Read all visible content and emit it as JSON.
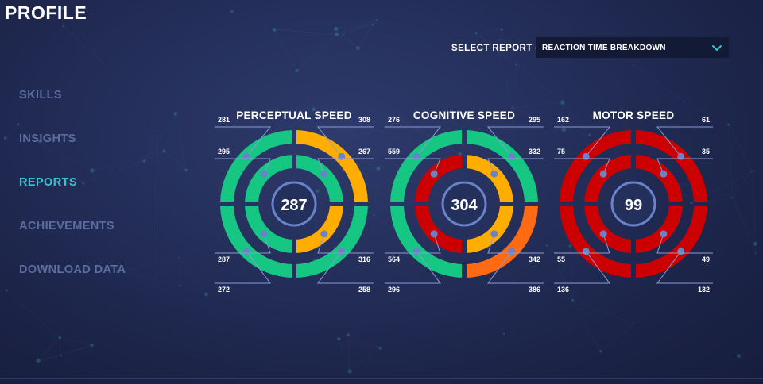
{
  "header": {
    "title": "PROFILE"
  },
  "nav": {
    "items": [
      {
        "label": "SKILLS",
        "active": false
      },
      {
        "label": "INSIGHTS",
        "active": false
      },
      {
        "label": "REPORTS",
        "active": true
      },
      {
        "label": "ACHIEVEMENTS",
        "active": false
      },
      {
        "label": "DOWNLOAD DATA",
        "active": false
      }
    ]
  },
  "report_select": {
    "label": "SELECT REPORT -",
    "value": "REACTION TIME BREAKDOWN",
    "icon": "chevron-down-icon"
  },
  "colors": {
    "green": "#16c784",
    "yellow": "#ffae00",
    "orange": "#ff6a13",
    "red": "#cc0000",
    "accent": "#35c4cf",
    "center_ring": "#6a82c8",
    "leader": "#8b9bd8"
  },
  "gauges": [
    {
      "title": "PERCEPTUAL SPEED",
      "score": "287",
      "outer": {
        "top_left": {
          "value": "281",
          "color": "green"
        },
        "top_right": {
          "value": "308",
          "color": "yellow"
        },
        "bottom_left": {
          "value": "272",
          "color": "green"
        },
        "bottom_right": {
          "value": "258",
          "color": "green"
        }
      },
      "inner": {
        "top_left": {
          "value": "295",
          "color": "green"
        },
        "top_right": {
          "value": "267",
          "color": "green"
        },
        "bottom_left": {
          "value": "287",
          "color": "green"
        },
        "bottom_right": {
          "value": "316",
          "color": "yellow"
        }
      }
    },
    {
      "title": "COGNITIVE SPEED",
      "score": "304",
      "outer": {
        "top_left": {
          "value": "276",
          "color": "green"
        },
        "top_right": {
          "value": "295",
          "color": "green"
        },
        "bottom_left": {
          "value": "296",
          "color": "green"
        },
        "bottom_right": {
          "value": "386",
          "color": "orange"
        }
      },
      "inner": {
        "top_left": {
          "value": "559",
          "color": "red"
        },
        "top_right": {
          "value": "332",
          "color": "yellow"
        },
        "bottom_left": {
          "value": "564",
          "color": "red"
        },
        "bottom_right": {
          "value": "342",
          "color": "yellow"
        }
      }
    },
    {
      "title": "MOTOR SPEED",
      "score": "99",
      "outer": {
        "top_left": {
          "value": "162",
          "color": "red"
        },
        "top_right": {
          "value": "61",
          "color": "red"
        },
        "bottom_left": {
          "value": "136",
          "color": "red"
        },
        "bottom_right": {
          "value": "132",
          "color": "red"
        }
      },
      "inner": {
        "top_left": {
          "value": "75",
          "color": "red"
        },
        "top_right": {
          "value": "35",
          "color": "red"
        },
        "bottom_left": {
          "value": "55",
          "color": "red"
        },
        "bottom_right": {
          "value": "49",
          "color": "red"
        }
      }
    }
  ]
}
